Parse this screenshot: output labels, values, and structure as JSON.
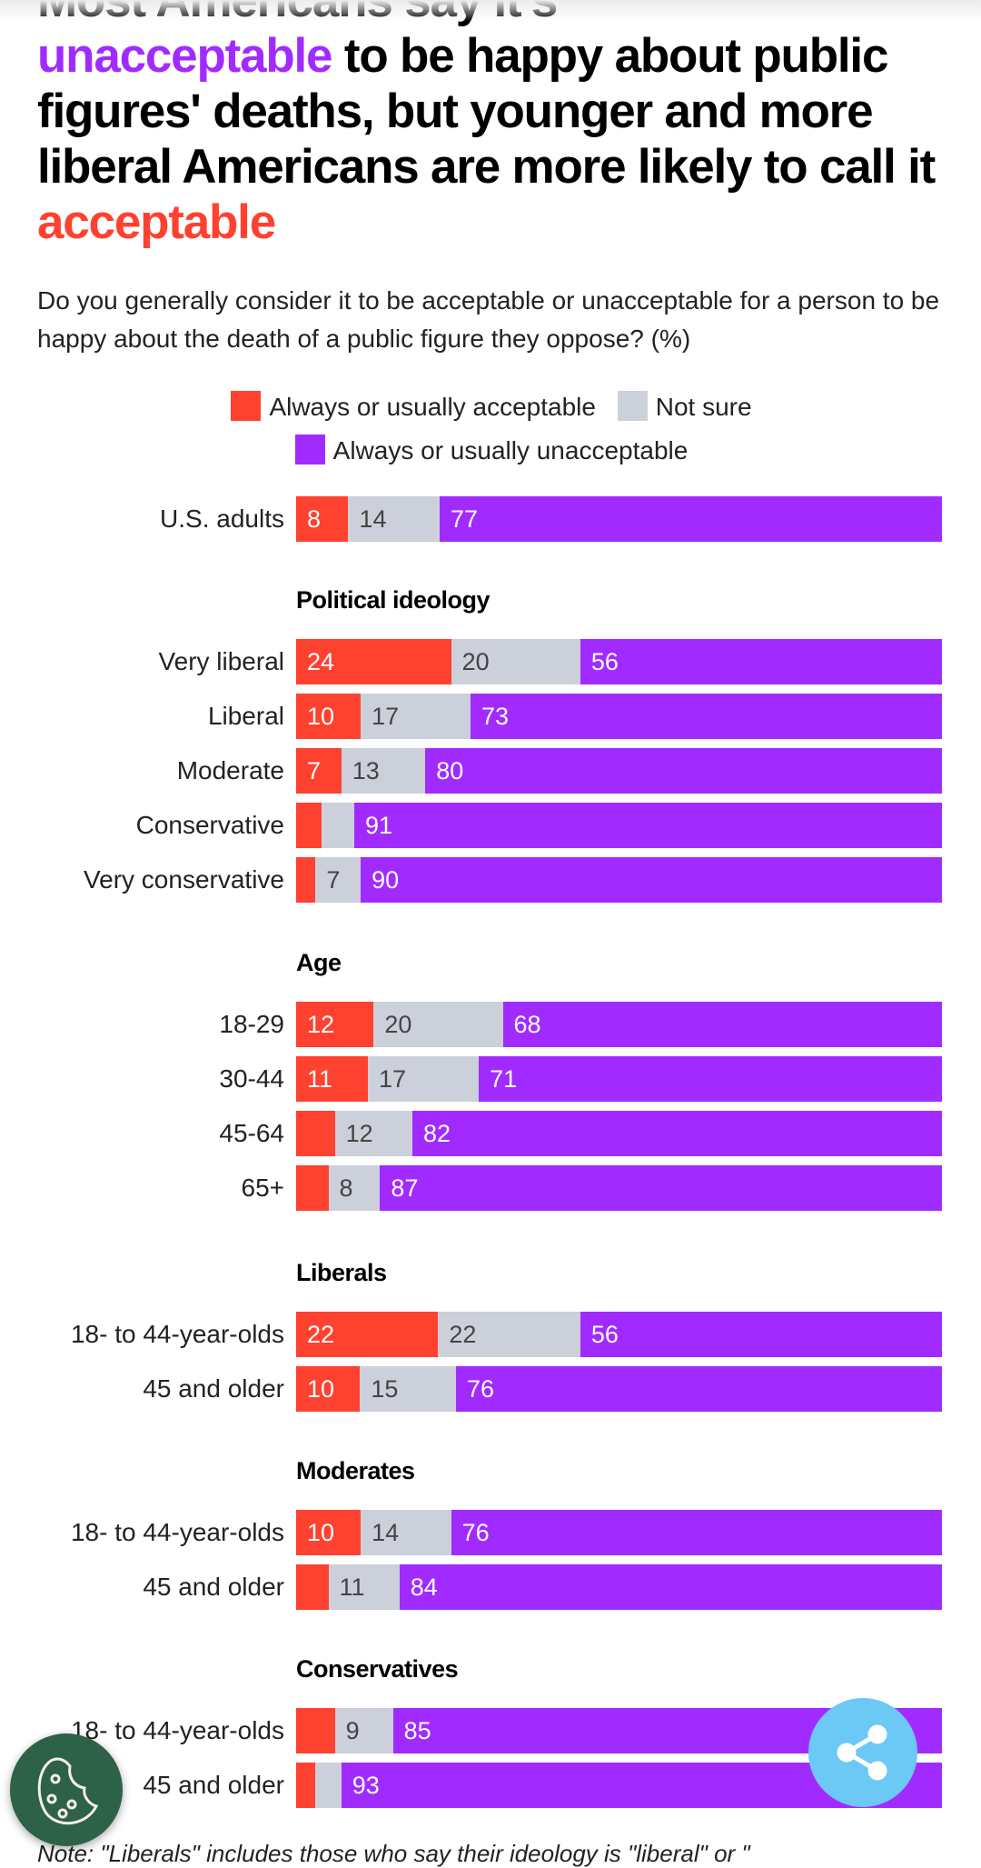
{
  "title": {
    "line1": "Most Americans say it's",
    "highlight_unacceptable": "unacceptable",
    "part2": " to be happy about public figures' deaths, but younger and more liberal Americans are more likely to call it ",
    "highlight_acceptable": "acceptable"
  },
  "subtitle": "Do you generally consider it to be acceptable or unacceptable for a person to be happy about the death of a public figure they oppose? (%)",
  "note": "Note: \"Liberals\" includes those who say their ideology is \"liberal\" or \"",
  "colors": {
    "acceptable": "#ff4130",
    "not_sure": "#cbd0da",
    "unacceptable": "#a12bff"
  },
  "chart_data": {
    "type": "bar",
    "orientation": "horizontal-stacked-100",
    "legend": [
      "Always or usually acceptable",
      "Not sure",
      "Always or usually unacceptable"
    ],
    "legend_placement": "top",
    "groups": [
      {
        "name": "",
        "rows": [
          {
            "label": "U.S. adults",
            "values": [
              8,
              14,
              77
            ],
            "shown": [
              true,
              true,
              true
            ]
          }
        ]
      },
      {
        "name": "Political ideology",
        "rows": [
          {
            "label": "Very liberal",
            "values": [
              24,
              20,
              56
            ],
            "shown": [
              true,
              true,
              true
            ]
          },
          {
            "label": "Liberal",
            "values": [
              10,
              17,
              73
            ],
            "shown": [
              true,
              true,
              true
            ]
          },
          {
            "label": "Moderate",
            "values": [
              7,
              13,
              80
            ],
            "shown": [
              true,
              true,
              true
            ]
          },
          {
            "label": "Conservative",
            "values": [
              4,
              5,
              91
            ],
            "shown": [
              false,
              false,
              true
            ]
          },
          {
            "label": "Very conservative",
            "values": [
              3,
              7,
              90
            ],
            "shown": [
              false,
              true,
              true
            ]
          }
        ]
      },
      {
        "name": "Age",
        "rows": [
          {
            "label": "18-29",
            "values": [
              12,
              20,
              68
            ],
            "shown": [
              true,
              true,
              true
            ]
          },
          {
            "label": "30-44",
            "values": [
              11,
              17,
              71
            ],
            "shown": [
              true,
              true,
              true
            ]
          },
          {
            "label": "45-64",
            "values": [
              6,
              12,
              82
            ],
            "shown": [
              false,
              true,
              true
            ]
          },
          {
            "label": "65+",
            "values": [
              5,
              8,
              87
            ],
            "shown": [
              false,
              true,
              true
            ]
          }
        ]
      },
      {
        "name": "Liberals",
        "rows": [
          {
            "label": "18- to 44-year-olds",
            "values": [
              22,
              22,
              56
            ],
            "shown": [
              true,
              true,
              true
            ]
          },
          {
            "label": "45 and older",
            "values": [
              10,
              15,
              76
            ],
            "shown": [
              true,
              true,
              true
            ]
          }
        ]
      },
      {
        "name": "Moderates",
        "rows": [
          {
            "label": "18- to 44-year-olds",
            "values": [
              10,
              14,
              76
            ],
            "shown": [
              true,
              true,
              true
            ]
          },
          {
            "label": "45 and older",
            "values": [
              5,
              11,
              84
            ],
            "shown": [
              false,
              true,
              true
            ]
          }
        ]
      },
      {
        "name": "Conservatives",
        "rows": [
          {
            "label": "18- to 44-year-olds",
            "values": [
              6,
              9,
              85
            ],
            "shown": [
              false,
              true,
              true
            ]
          },
          {
            "label": "45 and older",
            "values": [
              3,
              4,
              93
            ],
            "shown": [
              false,
              false,
              true
            ]
          }
        ]
      }
    ]
  }
}
